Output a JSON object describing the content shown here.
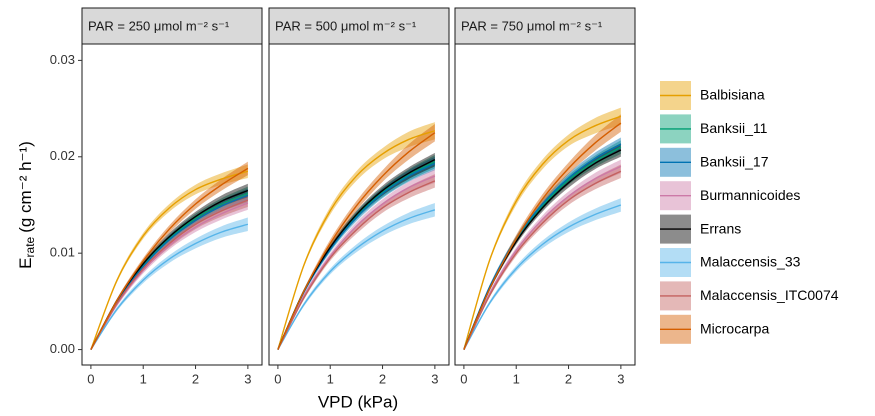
{
  "chart_data": [
    {
      "type": "line",
      "title": "PAR = 250 μmol m⁻² s⁻¹",
      "x": [
        0,
        0.5,
        1,
        1.5,
        2,
        2.5,
        3
      ],
      "xlim": [
        -0.17,
        3.27
      ],
      "xticks": [
        0,
        1,
        2,
        3
      ],
      "ylim": [
        -0.0016,
        0.0317
      ],
      "yticks": [
        {
          "value": 0,
          "label": "0.00"
        },
        {
          "value": 0.01,
          "label": "0.01"
        },
        {
          "value": 0.02,
          "label": "0.02"
        },
        {
          "value": 0.03,
          "label": "0.03"
        }
      ],
      "series": [
        {
          "name": "Balbisiana",
          "color": "#e69f00",
          "values": [
            0,
            0.0072,
            0.0118,
            0.0147,
            0.0166,
            0.0177,
            0.0185
          ],
          "error": [
            0,
            0.0002,
            0.0003,
            0.0004,
            0.0005,
            0.0006,
            0.0007
          ]
        },
        {
          "name": "Banksii_11",
          "color": "#009e73",
          "values": [
            0,
            0.005,
            0.0088,
            0.0115,
            0.0136,
            0.0151,
            0.0162
          ],
          "error": [
            0,
            0.0002,
            0.0003,
            0.0004,
            0.0005,
            0.0006,
            0.0007
          ]
        },
        {
          "name": "Banksii_17",
          "color": "#0072b2",
          "values": [
            0,
            0.005,
            0.0086,
            0.0114,
            0.0134,
            0.0149,
            0.016
          ],
          "error": [
            0,
            0.0002,
            0.0003,
            0.0004,
            0.0005,
            0.0006,
            0.0007
          ]
        },
        {
          "name": "Burmannicoides",
          "color": "#cc79a7",
          "values": [
            0,
            0.0047,
            0.0082,
            0.0108,
            0.0127,
            0.0141,
            0.0152
          ],
          "error": [
            0,
            0.0002,
            0.0003,
            0.0004,
            0.0005,
            0.0006,
            0.0007
          ]
        },
        {
          "name": "Errans",
          "color": "#000000",
          "values": [
            0,
            0.0051,
            0.0089,
            0.0117,
            0.0138,
            0.0154,
            0.0165
          ],
          "error": [
            0,
            0.0002,
            0.0003,
            0.0004,
            0.0005,
            0.0006,
            0.0007
          ]
        },
        {
          "name": "Malaccensis_33",
          "color": "#56b4e9",
          "values": [
            0,
            0.0042,
            0.0072,
            0.0094,
            0.011,
            0.0122,
            0.013
          ],
          "error": [
            0,
            0.0002,
            0.0003,
            0.0004,
            0.0005,
            0.0006,
            0.0007
          ]
        },
        {
          "name": "Malaccensis_ITC0074",
          "color": "#c4615f",
          "values": [
            0,
            0.0048,
            0.0084,
            0.011,
            0.013,
            0.0144,
            0.0155
          ],
          "error": [
            0,
            0.0002,
            0.0003,
            0.0004,
            0.0005,
            0.0006,
            0.0007
          ]
        },
        {
          "name": "Microcarpa",
          "color": "#d55e00",
          "values": [
            0,
            0.0051,
            0.0092,
            0.0125,
            0.0151,
            0.0171,
            0.0188
          ],
          "error": [
            0,
            0.0002,
            0.0003,
            0.0004,
            0.0005,
            0.0006,
            0.0007
          ]
        }
      ]
    },
    {
      "type": "line",
      "title": "PAR = 500 μmol m⁻² s⁻¹",
      "x": [
        0,
        0.5,
        1,
        1.5,
        2,
        2.5,
        3
      ],
      "xlim": [
        -0.17,
        3.27
      ],
      "xticks": [
        0,
        1,
        2,
        3
      ],
      "series": [
        {
          "name": "Balbisiana",
          "color": "#e69f00",
          "values": [
            0,
            0.0088,
            0.0144,
            0.018,
            0.0203,
            0.0218,
            0.0227
          ],
          "error": [
            0,
            0.0002,
            0.0004,
            0.0005,
            0.0006,
            0.0008,
            0.0009
          ]
        },
        {
          "name": "Banksii_11",
          "color": "#009e73",
          "values": [
            0,
            0.0061,
            0.0105,
            0.0139,
            0.0163,
            0.0181,
            0.0195
          ],
          "error": [
            0,
            0.0002,
            0.0003,
            0.0004,
            0.0005,
            0.0006,
            0.0007
          ]
        },
        {
          "name": "Banksii_17",
          "color": "#0072b2",
          "values": [
            0,
            0.006,
            0.0104,
            0.0137,
            0.0162,
            0.018,
            0.0193
          ],
          "error": [
            0,
            0.0002,
            0.0003,
            0.0004,
            0.0005,
            0.0006,
            0.0007
          ]
        },
        {
          "name": "Burmannicoides",
          "color": "#cc79a7",
          "values": [
            0,
            0.0056,
            0.0097,
            0.0128,
            0.0151,
            0.0168,
            0.018
          ],
          "error": [
            0,
            0.0002,
            0.0003,
            0.0004,
            0.0005,
            0.0006,
            0.0007
          ]
        },
        {
          "name": "Errans",
          "color": "#000000",
          "values": [
            0,
            0.0061,
            0.0106,
            0.014,
            0.0165,
            0.0183,
            0.0197
          ],
          "error": [
            0,
            0.0002,
            0.0003,
            0.0004,
            0.0005,
            0.0006,
            0.0007
          ]
        },
        {
          "name": "Malaccensis_33",
          "color": "#56b4e9",
          "values": [
            0,
            0.0047,
            0.0081,
            0.0105,
            0.0123,
            0.0136,
            0.0145
          ],
          "error": [
            0,
            0.0002,
            0.0003,
            0.0004,
            0.0005,
            0.0006,
            0.0007
          ]
        },
        {
          "name": "Malaccensis_ITC0074",
          "color": "#c4615f",
          "values": [
            0,
            0.0054,
            0.0095,
            0.0124,
            0.0147,
            0.0163,
            0.0175
          ],
          "error": [
            0,
            0.0002,
            0.0003,
            0.0004,
            0.0005,
            0.0006,
            0.0007
          ]
        },
        {
          "name": "Microcarpa",
          "color": "#d55e00",
          "values": [
            0,
            0.0061,
            0.011,
            0.0149,
            0.018,
            0.0205,
            0.0225
          ],
          "error": [
            0,
            0.0002,
            0.0004,
            0.0005,
            0.0006,
            0.0008,
            0.0009
          ]
        }
      ]
    },
    {
      "type": "line",
      "title": "PAR = 750 μmol m⁻² s⁻¹",
      "x": [
        0,
        0.5,
        1,
        1.5,
        2,
        2.5,
        3
      ],
      "xlim": [
        -0.17,
        3.27
      ],
      "xticks": [
        0,
        1,
        2,
        3
      ],
      "series": [
        {
          "name": "Balbisiana",
          "color": "#e69f00",
          "values": [
            0,
            0.0094,
            0.0154,
            0.0192,
            0.0217,
            0.0232,
            0.0242
          ],
          "error": [
            0,
            0.0002,
            0.0004,
            0.0005,
            0.0006,
            0.0008,
            0.0009
          ]
        },
        {
          "name": "Banksii_11",
          "color": "#009e73",
          "values": [
            0,
            0.0065,
            0.0114,
            0.0149,
            0.0176,
            0.0195,
            0.021
          ],
          "error": [
            0,
            0.0002,
            0.0003,
            0.0004,
            0.0005,
            0.0006,
            0.0007
          ]
        },
        {
          "name": "Banksii_17",
          "color": "#0072b2",
          "values": [
            0,
            0.0066,
            0.0115,
            0.0151,
            0.0178,
            0.0198,
            0.0213
          ],
          "error": [
            0,
            0.0002,
            0.0003,
            0.0004,
            0.0005,
            0.0006,
            0.0007
          ]
        },
        {
          "name": "Burmannicoides",
          "color": "#cc79a7",
          "values": [
            0,
            0.0059,
            0.0103,
            0.0135,
            0.0159,
            0.0177,
            0.019
          ],
          "error": [
            0,
            0.0002,
            0.0003,
            0.0004,
            0.0005,
            0.0006,
            0.0007
          ]
        },
        {
          "name": "Errans",
          "color": "#000000",
          "values": [
            0,
            0.0064,
            0.0112,
            0.0147,
            0.0173,
            0.0193,
            0.0207
          ],
          "error": [
            0,
            0.0002,
            0.0003,
            0.0004,
            0.0005,
            0.0006,
            0.0007
          ]
        },
        {
          "name": "Malaccensis_33",
          "color": "#56b4e9",
          "values": [
            0,
            0.0049,
            0.0084,
            0.0109,
            0.0127,
            0.014,
            0.015
          ],
          "error": [
            0,
            0.0002,
            0.0003,
            0.0004,
            0.0005,
            0.0006,
            0.0007
          ]
        },
        {
          "name": "Malaccensis_ITC0074",
          "color": "#c4615f",
          "values": [
            0,
            0.0057,
            0.01,
            0.0131,
            0.0155,
            0.0172,
            0.0185
          ],
          "error": [
            0,
            0.0002,
            0.0003,
            0.0004,
            0.0005,
            0.0006,
            0.0007
          ]
        },
        {
          "name": "Microcarpa",
          "color": "#d55e00",
          "values": [
            0,
            0.0064,
            0.0115,
            0.0156,
            0.0188,
            0.0214,
            0.0235
          ],
          "error": [
            0,
            0.0002,
            0.0004,
            0.0005,
            0.0006,
            0.0008,
            0.0009
          ]
        }
      ]
    }
  ],
  "y_label": {
    "main": "E",
    "subscript": "rate",
    "unit": "(g cm⁻² h⁻¹)"
  },
  "x_label": "VPD (kPa)"
}
